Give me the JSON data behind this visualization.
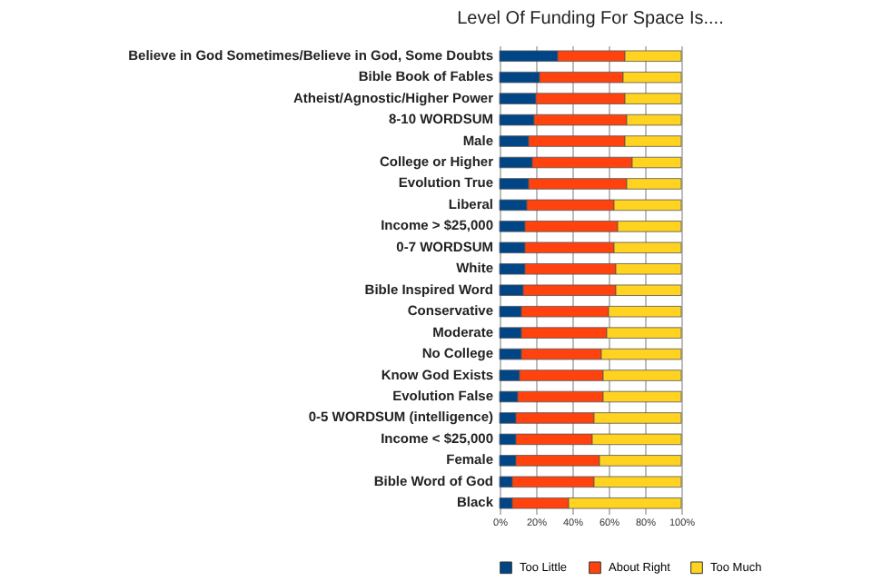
{
  "chart_data": {
    "type": "bar",
    "title": "Level Of Funding For Space Is....",
    "orientation": "horizontal",
    "stacked": true,
    "categories": [
      "Believe in God Sometimes/Believe in God, Some Doubts",
      "Bible Book of Fables",
      "Atheist/Agnostic/Higher Power",
      "8-10 WORDSUM",
      "Male",
      "College or Higher",
      "Evolution True",
      "Liberal",
      "Income > $25,000",
      "0-7 WORDSUM",
      "White",
      "Bible Inspired Word",
      "Conservative",
      "Moderate",
      "No College",
      "Know God Exists",
      "Evolution False",
      "0-5 WORDSUM (intelligence)",
      "Income < $25,000",
      "Female",
      "Bible Word of God",
      "Black"
    ],
    "series": [
      {
        "name": "Too Little",
        "color": "#004586",
        "values": [
          32,
          22,
          20,
          19,
          16,
          18,
          16,
          15,
          14,
          14,
          14,
          13,
          12,
          12,
          12,
          11,
          10,
          9,
          9,
          9,
          7,
          7
        ]
      },
      {
        "name": "About Right",
        "color": "#ff420e",
        "values": [
          37,
          46,
          49,
          51,
          53,
          55,
          54,
          48,
          51,
          49,
          50,
          51,
          48,
          47,
          44,
          46,
          47,
          43,
          42,
          46,
          45,
          31
        ]
      },
      {
        "name": "Too Much",
        "color": "#ffd320",
        "values": [
          31,
          32,
          31,
          30,
          31,
          27,
          30,
          37,
          35,
          37,
          36,
          36,
          40,
          41,
          44,
          43,
          43,
          48,
          49,
          45,
          48,
          62
        ]
      }
    ],
    "xlim": [
      0,
      100
    ],
    "xticks": [
      {
        "value": 0,
        "label": "0%"
      },
      {
        "value": 20,
        "label": "20%"
      },
      {
        "value": 40,
        "label": "40%"
      },
      {
        "value": 60,
        "label": "60%"
      },
      {
        "value": 80,
        "label": "80%"
      },
      {
        "value": 100,
        "label": "100%"
      }
    ],
    "grid": "x",
    "legend": "bottom"
  }
}
